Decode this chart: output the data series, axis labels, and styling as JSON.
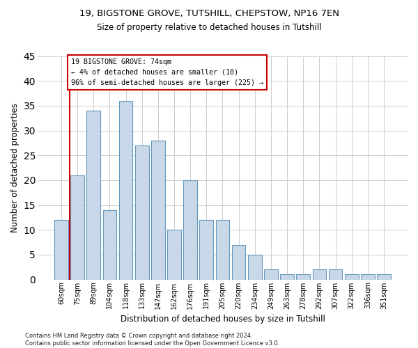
{
  "title1": "19, BIGSTONE GROVE, TUTSHILL, CHEPSTOW, NP16 7EN",
  "title2": "Size of property relative to detached houses in Tutshill",
  "xlabel": "Distribution of detached houses by size in Tutshill",
  "ylabel": "Number of detached properties",
  "categories": [
    "60sqm",
    "75sqm",
    "89sqm",
    "104sqm",
    "118sqm",
    "133sqm",
    "147sqm",
    "162sqm",
    "176sqm",
    "191sqm",
    "205sqm",
    "220sqm",
    "234sqm",
    "249sqm",
    "263sqm",
    "278sqm",
    "292sqm",
    "307sqm",
    "322sqm",
    "336sqm",
    "351sqm"
  ],
  "values": [
    12,
    21,
    34,
    14,
    36,
    27,
    28,
    10,
    20,
    12,
    12,
    7,
    5,
    2,
    1,
    1,
    2,
    2,
    1,
    1,
    1
  ],
  "bar_color": "#c8d8e8",
  "bar_edge_color": "#6699bb",
  "annotation_text_line1": "19 BIGSTONE GROVE: 74sqm",
  "annotation_text_line2": "← 4% of detached houses are smaller (10)",
  "annotation_text_line3": "96% of semi-detached houses are larger (225) →",
  "annotation_box_color": "#ffffff",
  "annotation_box_edge_color": "#cc0000",
  "vline_color": "#cc0000",
  "grid_color": "#cccccc",
  "background_color": "#ffffff",
  "footer": "Contains HM Land Registry data © Crown copyright and database right 2024.\nContains public sector information licensed under the Open Government Licence v3.0.",
  "ylim": [
    0,
    45
  ],
  "yticks": [
    0,
    5,
    10,
    15,
    20,
    25,
    30,
    35,
    40,
    45
  ]
}
